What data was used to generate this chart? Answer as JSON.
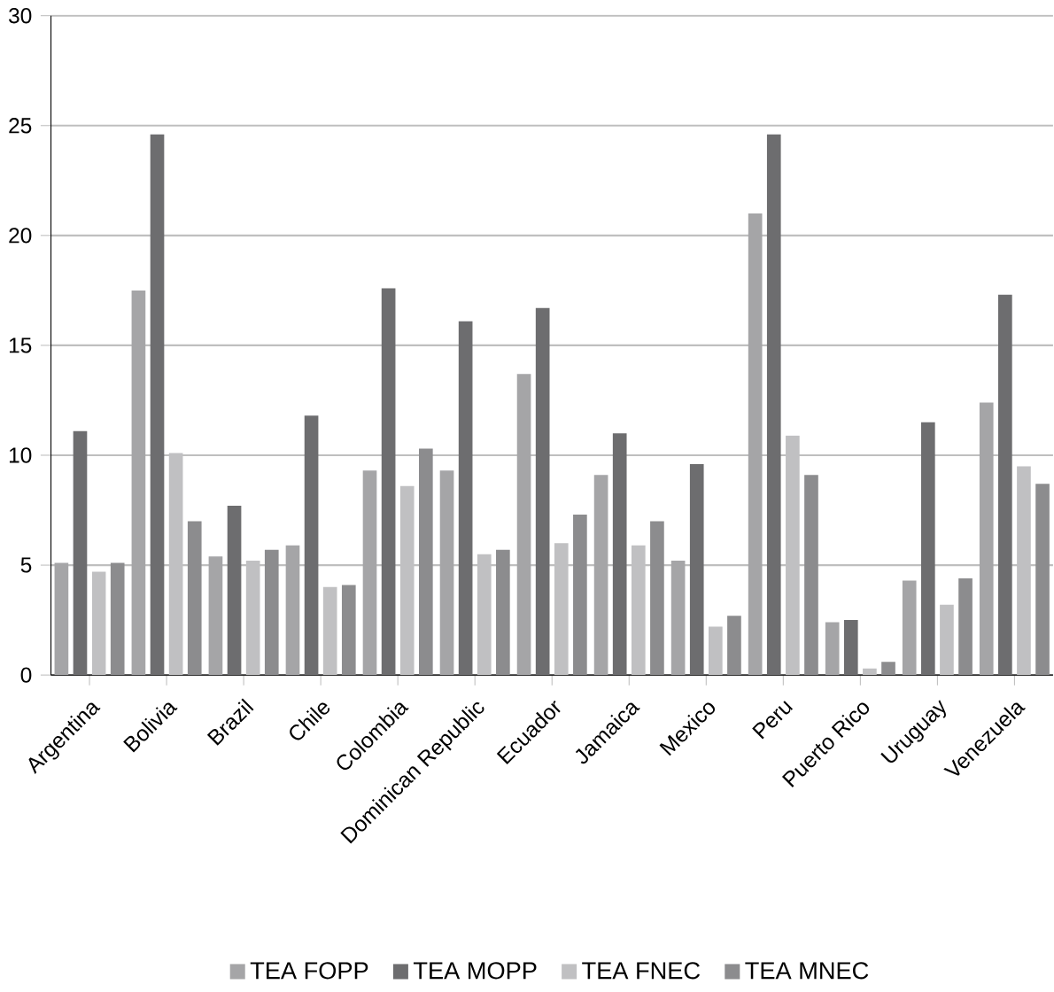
{
  "chart_data": {
    "type": "bar",
    "categories": [
      "Argentina",
      "Bolivia",
      "Brazil",
      "Chile",
      "Colombia",
      "Dominican Republic",
      "Ecuador",
      "Jamaica",
      "Mexico",
      "Peru",
      "Puerto Rico",
      "Uruguay",
      "Venezuela"
    ],
    "series": [
      {
        "name": "TEA FOPP",
        "color": "#a5a5a7",
        "values": [
          5.1,
          17.5,
          5.4,
          5.9,
          9.3,
          9.3,
          13.7,
          9.1,
          5.2,
          21.0,
          2.4,
          4.3,
          12.4
        ]
      },
      {
        "name": "TEA MOPP",
        "color": "#6d6d6f",
        "values": [
          11.1,
          24.6,
          7.7,
          11.8,
          17.6,
          16.1,
          16.7,
          11.0,
          9.6,
          24.6,
          2.5,
          11.5,
          17.3
        ]
      },
      {
        "name": "TEA FNEC",
        "color": "#c0c0c2",
        "values": [
          4.7,
          10.1,
          5.2,
          4.0,
          8.6,
          5.5,
          6.0,
          5.9,
          2.2,
          10.9,
          0.3,
          3.2,
          9.5
        ]
      },
      {
        "name": "TEA MNEC",
        "color": "#8c8c8e",
        "values": [
          5.1,
          7.0,
          5.7,
          4.1,
          10.3,
          5.7,
          7.3,
          7.0,
          2.7,
          9.1,
          0.6,
          4.4,
          8.7
        ]
      }
    ],
    "ylim": [
      0,
      30
    ],
    "yticks": [
      0,
      5,
      10,
      15,
      20,
      25,
      30
    ],
    "grid": "y",
    "legend": "bottom"
  }
}
